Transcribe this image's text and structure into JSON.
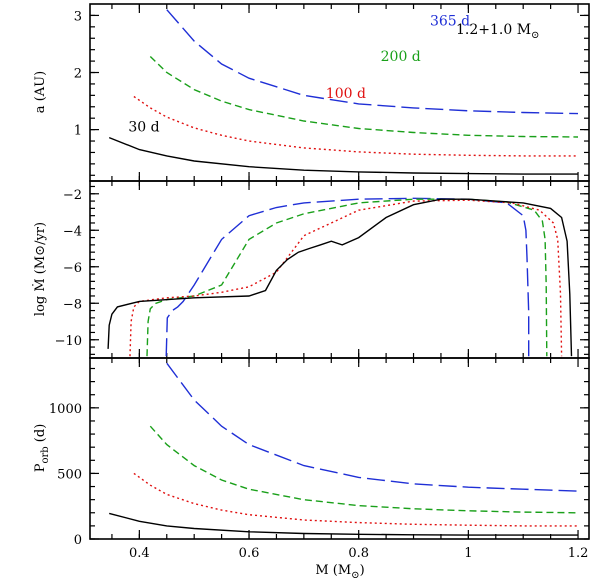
{
  "figure": {
    "annotation": "1.2+1.0 M",
    "annotation_sub": "⊙"
  },
  "colors": {
    "365 d": "#1f2fd6",
    "200 d": "#1aa01a",
    "100 d": "#e01010",
    "30 d": "#000000"
  },
  "chart_data": [
    {
      "type": "line",
      "panel": "top",
      "ylabel": "a (AU)",
      "xlim": [
        0.31,
        1.22
      ],
      "ylim": [
        0.1,
        3.2
      ],
      "yticks": [
        1,
        2,
        3
      ],
      "ytick_labels": [
        "1",
        "2",
        "3"
      ],
      "series_labels": [
        {
          "name": "365 d",
          "text": "365 d",
          "x": 0.93,
          "y": 2.82
        },
        {
          "name": "200 d",
          "text": "200 d",
          "x": 0.84,
          "y": 2.2
        },
        {
          "name": "100 d",
          "text": "100 d",
          "x": 0.74,
          "y": 1.55
        },
        {
          "name": "30 d",
          "text": "30 d",
          "x": 0.38,
          "y": 0.97
        }
      ],
      "series": [
        {
          "name": "365 d",
          "x": [
            0.45,
            0.5,
            0.55,
            0.6,
            0.7,
            0.8,
            0.9,
            1.0,
            1.1,
            1.2
          ],
          "y": [
            3.1,
            2.55,
            2.15,
            1.9,
            1.6,
            1.45,
            1.38,
            1.33,
            1.3,
            1.28
          ]
        },
        {
          "name": "200 d",
          "x": [
            0.42,
            0.45,
            0.5,
            0.55,
            0.6,
            0.7,
            0.8,
            0.9,
            1.0,
            1.1,
            1.2
          ],
          "y": [
            2.28,
            2.0,
            1.7,
            1.5,
            1.35,
            1.15,
            1.02,
            0.95,
            0.9,
            0.88,
            0.87
          ]
        },
        {
          "name": "100 d",
          "x": [
            0.39,
            0.42,
            0.45,
            0.5,
            0.55,
            0.6,
            0.7,
            0.8,
            0.9,
            1.0,
            1.1,
            1.2
          ],
          "y": [
            1.58,
            1.38,
            1.22,
            1.03,
            0.9,
            0.8,
            0.68,
            0.61,
            0.57,
            0.55,
            0.54,
            0.54
          ]
        },
        {
          "name": "30 d",
          "x": [
            0.345,
            0.4,
            0.45,
            0.5,
            0.6,
            0.7,
            0.8,
            0.9,
            1.0,
            1.1,
            1.2
          ],
          "y": [
            0.86,
            0.65,
            0.54,
            0.45,
            0.35,
            0.29,
            0.26,
            0.24,
            0.23,
            0.22,
            0.22
          ]
        }
      ]
    },
    {
      "type": "line",
      "panel": "middle",
      "ylabel": "log Ṁ (M⊙/yr)",
      "xlim": [
        0.31,
        1.22
      ],
      "ylim": [
        -11,
        -1.3
      ],
      "yticks": [
        -2,
        -4,
        -6,
        -8,
        -10
      ],
      "ytick_labels": [
        "−2",
        "−4",
        "−6",
        "−8",
        "−10"
      ],
      "series": [
        {
          "name": "365 d",
          "x": [
            0.449,
            0.451,
            0.46,
            0.47,
            0.48,
            0.5,
            0.55,
            0.6,
            0.65,
            0.7,
            0.8,
            0.9,
            1.0,
            1.07,
            1.1,
            1.105,
            1.107,
            1.11,
            1.11
          ],
          "y": [
            -10.9,
            -8.8,
            -8.4,
            -8.2,
            -7.9,
            -7.0,
            -4.5,
            -3.2,
            -2.75,
            -2.5,
            -2.3,
            -2.25,
            -2.3,
            -2.5,
            -3.2,
            -4.0,
            -5.5,
            -8.5,
            -10.9
          ]
        },
        {
          "name": "200 d",
          "x": [
            0.414,
            0.416,
            0.42,
            0.43,
            0.45,
            0.5,
            0.55,
            0.6,
            0.65,
            0.7,
            0.8,
            0.9,
            1.0,
            1.07,
            1.12,
            1.135,
            1.14,
            1.142,
            1.143
          ],
          "y": [
            -10.9,
            -9.0,
            -8.3,
            -8.0,
            -7.8,
            -7.6,
            -7.0,
            -4.5,
            -3.6,
            -3.1,
            -2.5,
            -2.3,
            -2.3,
            -2.45,
            -2.9,
            -3.5,
            -4.5,
            -7.0,
            -10.9
          ]
        },
        {
          "name": "100 d",
          "x": [
            0.383,
            0.385,
            0.39,
            0.4,
            0.45,
            0.5,
            0.55,
            0.6,
            0.65,
            0.7,
            0.8,
            0.9,
            1.0,
            1.08,
            1.13,
            1.155,
            1.163,
            1.168,
            1.17
          ],
          "y": [
            -10.9,
            -9.0,
            -8.2,
            -7.9,
            -7.7,
            -7.6,
            -7.4,
            -7.1,
            -6.3,
            -4.3,
            -2.9,
            -2.4,
            -2.35,
            -2.5,
            -2.9,
            -3.6,
            -4.5,
            -7.5,
            -10.9
          ]
        },
        {
          "name": "30 d",
          "x": [
            0.343,
            0.345,
            0.35,
            0.36,
            0.4,
            0.5,
            0.6,
            0.63,
            0.65,
            0.67,
            0.69,
            0.71,
            0.73,
            0.75,
            0.77,
            0.8,
            0.85,
            0.9,
            0.95,
            1.0,
            1.05,
            1.1,
            1.15,
            1.17,
            1.18,
            1.185,
            1.188
          ],
          "y": [
            -10.5,
            -9.2,
            -8.6,
            -8.2,
            -7.9,
            -7.7,
            -7.6,
            -7.3,
            -6.2,
            -5.6,
            -5.2,
            -5.0,
            -4.8,
            -4.6,
            -4.8,
            -4.4,
            -3.3,
            -2.6,
            -2.3,
            -2.3,
            -2.4,
            -2.5,
            -2.8,
            -3.3,
            -4.6,
            -7.5,
            -10.9
          ]
        }
      ]
    },
    {
      "type": "line",
      "panel": "bottom",
      "ylabel": "P",
      "ylabel_sub": "orb",
      "ylabel_suffix": " (d)",
      "xlabel": "M (M",
      "xlabel_sub": "⊙",
      "xlabel_suffix": ")",
      "xlim": [
        0.31,
        1.22
      ],
      "ylim": [
        0,
        1380
      ],
      "yticks": [
        0,
        500,
        1000
      ],
      "ytick_labels": [
        "0",
        "500",
        "1000"
      ],
      "xticks": [
        0.4,
        0.6,
        0.8,
        1.0,
        1.2
      ],
      "xtick_labels": [
        "0.4",
        "0.6",
        "0.8",
        "1",
        "1.2"
      ],
      "series": [
        {
          "name": "365 d",
          "x": [
            0.45,
            0.5,
            0.55,
            0.6,
            0.7,
            0.8,
            0.9,
            1.0,
            1.1,
            1.2
          ],
          "y": [
            1340,
            1060,
            860,
            720,
            560,
            470,
            420,
            395,
            380,
            365
          ]
        },
        {
          "name": "200 d",
          "x": [
            0.42,
            0.45,
            0.5,
            0.55,
            0.6,
            0.7,
            0.8,
            0.9,
            1.0,
            1.1,
            1.2
          ],
          "y": [
            860,
            720,
            560,
            450,
            380,
            300,
            255,
            230,
            215,
            205,
            200
          ]
        },
        {
          "name": "100 d",
          "x": [
            0.39,
            0.42,
            0.45,
            0.5,
            0.55,
            0.6,
            0.7,
            0.8,
            0.9,
            1.0,
            1.1,
            1.2
          ],
          "y": [
            500,
            410,
            340,
            270,
            220,
            185,
            145,
            125,
            112,
            105,
            100,
            100
          ]
        },
        {
          "name": "30 d",
          "x": [
            0.345,
            0.4,
            0.45,
            0.5,
            0.6,
            0.7,
            0.8,
            0.9,
            1.0,
            1.1,
            1.2
          ],
          "y": [
            195,
            135,
            100,
            80,
            55,
            42,
            36,
            32,
            30,
            30,
            30
          ]
        }
      ]
    }
  ]
}
